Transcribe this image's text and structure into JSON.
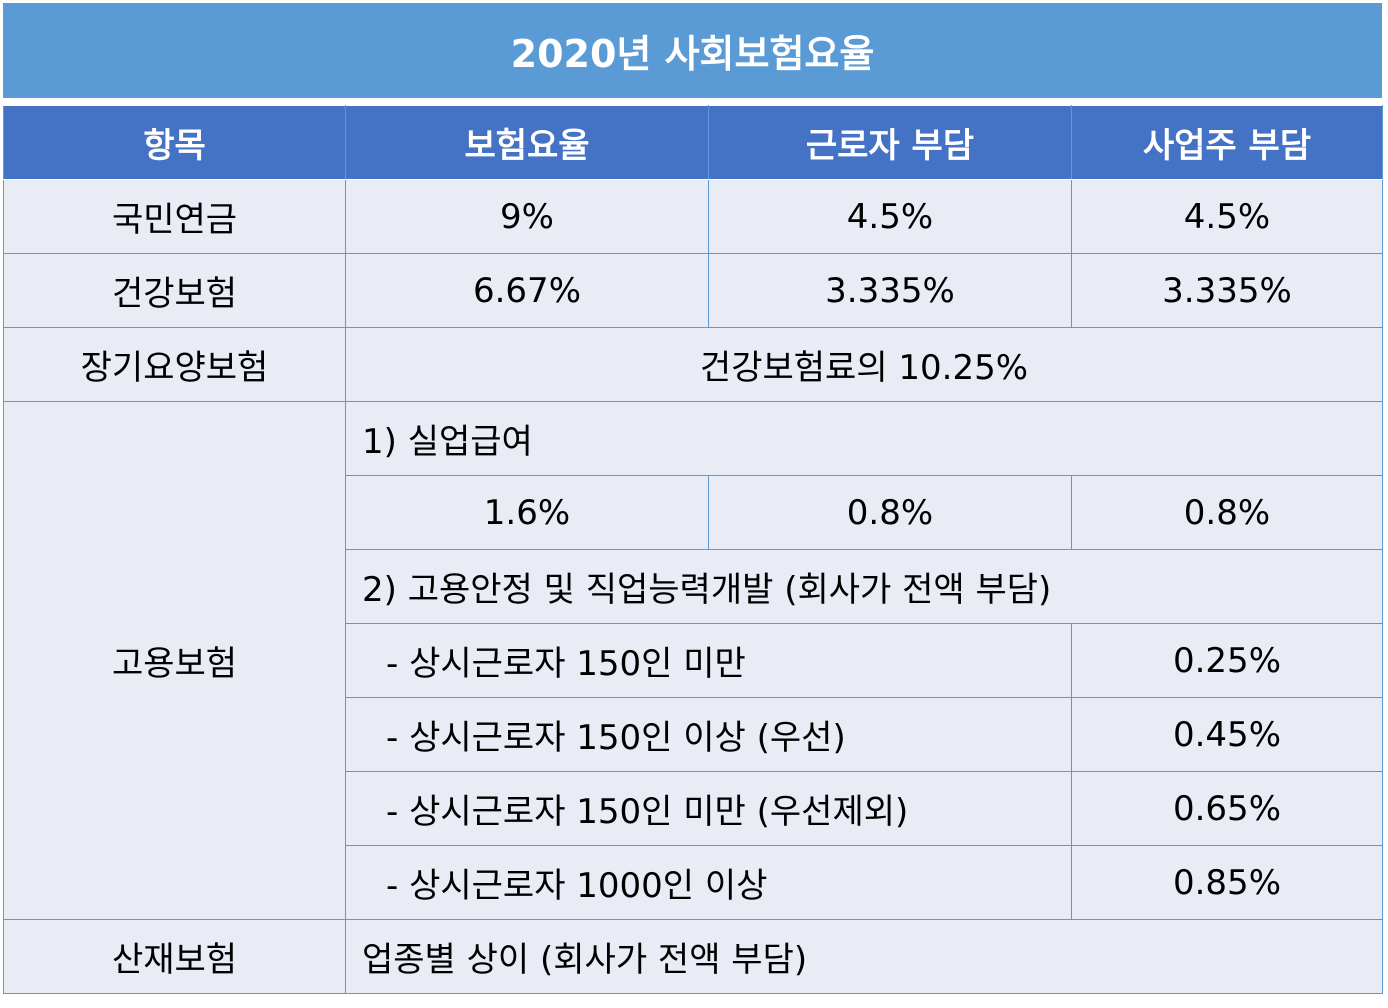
{
  "title": "2020년 사회보험요율",
  "header": {
    "item": "항목",
    "rate": "보험요율",
    "employee": "근로자 부담",
    "employer": "사업주 부담"
  },
  "rows": {
    "pension": {
      "name": "국민연금",
      "rate": "9%",
      "employee": "4.5%",
      "employer": "4.5%"
    },
    "health": {
      "name": "건강보험",
      "rate": "6.67%",
      "employee": "3.335%",
      "employer": "3.335%"
    },
    "longterm": {
      "name": "장기요양보험",
      "note": "건강보험료의 10.25%"
    },
    "employment": {
      "name": "고용보험",
      "section1": "1) 실업급여",
      "rate": "1.6%",
      "employee": "0.8%",
      "employer": "0.8%",
      "section2": "2) 고용안정 및 직업능력개발 (회사가 전액 부담)",
      "tiers": [
        {
          "label": "- 상시근로자 150인 미만",
          "rate": "0.25%"
        },
        {
          "label": "- 상시근로자 150인 이상 (우선)",
          "rate": "0.45%"
        },
        {
          "label": "- 상시근로자 150인 미만 (우선제외)",
          "rate": "0.65%"
        },
        {
          "label": "- 상시근로자 1000인 이상",
          "rate": "0.85%"
        }
      ]
    },
    "accident": {
      "name": "산재보험",
      "note": "업종별 상이 (회사가 전액 부담)"
    }
  },
  "colors": {
    "title_bg": "#5b9bd5",
    "header_bg": "#4472c4",
    "cell_bg": "#e9ebf5",
    "border": "#5b9bd5"
  }
}
